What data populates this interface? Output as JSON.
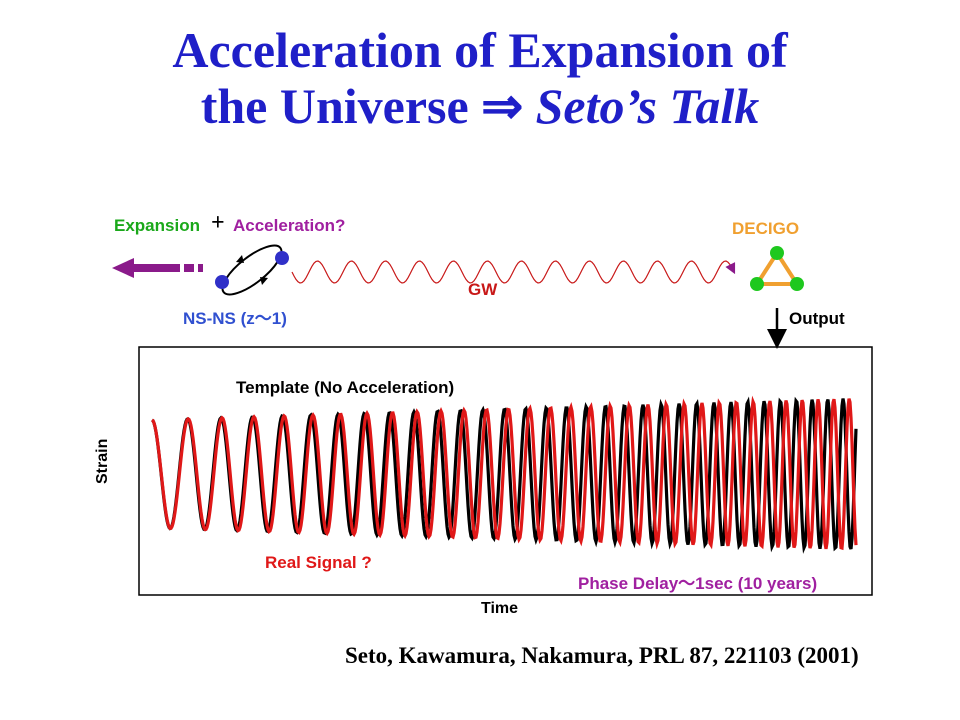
{
  "title": {
    "line1": "Acceleration of Expansion of",
    "line2_prefix": "the Universe ",
    "arrow": "⇒",
    "line2_italic": " Seto’s Talk"
  },
  "diagram": {
    "expansion_label": "Expansion",
    "plus": "+",
    "acceleration_label": "Acceleration?",
    "source_label": "NS-NS (z～1)",
    "wave_label": "GW",
    "detector_label": "DECIGO",
    "output_label": "Output"
  },
  "plot": {
    "y_label": "Strain",
    "x_label": "Time",
    "template_label": "Template (No Acceleration)",
    "signal_label": "Real Signal ?",
    "delay_label": "Phase Delay～1sec (10 years)"
  },
  "reference": "Seto, Kawamura, Nakamura, PRL 87, 221103 (2001)",
  "colors": {
    "title": "#1f1fc8",
    "green": "#1aa81a",
    "purple": "#a020a0",
    "orange": "#f0a030",
    "red": "#e01818",
    "blue_label": "#3050d0",
    "black": "#000000",
    "arrow_purple": "#8a1a8a"
  }
}
